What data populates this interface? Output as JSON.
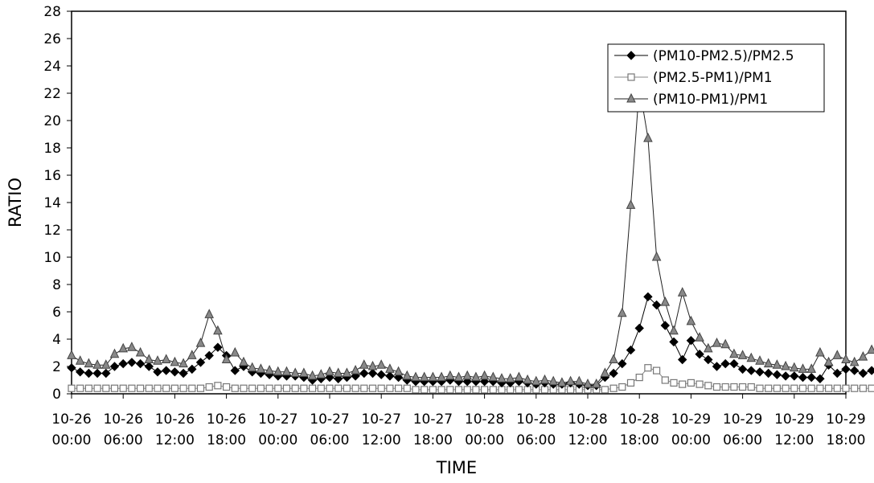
{
  "chart_data": {
    "type": "line",
    "xlabel": "TIME",
    "ylabel": "RATIO",
    "ylim": [
      0,
      28
    ],
    "y_ticks": [
      0,
      2,
      4,
      6,
      8,
      10,
      12,
      14,
      16,
      18,
      20,
      22,
      24,
      26,
      28
    ],
    "x_ticks": [
      {
        "date": "10-26",
        "time": "00:00"
      },
      {
        "date": "10-26",
        "time": "06:00"
      },
      {
        "date": "10-26",
        "time": "12:00"
      },
      {
        "date": "10-26",
        "time": "18:00"
      },
      {
        "date": "10-27",
        "time": "00:00"
      },
      {
        "date": "10-27",
        "time": "06:00"
      },
      {
        "date": "10-27",
        "time": "12:00"
      },
      {
        "date": "10-27",
        "time": "18:00"
      },
      {
        "date": "10-28",
        "time": "00:00"
      },
      {
        "date": "10-28",
        "time": "06:00"
      },
      {
        "date": "10-28",
        "time": "12:00"
      },
      {
        "date": "10-28",
        "time": "18:00"
      },
      {
        "date": "10-29",
        "time": "00:00"
      },
      {
        "date": "10-29",
        "time": "06:00"
      },
      {
        "date": "10-29",
        "time": "12:00"
      },
      {
        "date": "10-29",
        "time": "18:00"
      }
    ],
    "x_start": "10-26 00:00",
    "x_interval_hours": 1,
    "grid": false,
    "legend_position": "top-right",
    "series": [
      {
        "name": "(PM10-PM2.5)/PM2.5",
        "marker": "diamond",
        "values": [
          1.9,
          1.6,
          1.5,
          1.5,
          1.5,
          2.0,
          2.2,
          2.3,
          2.2,
          2.0,
          1.6,
          1.7,
          1.6,
          1.5,
          1.8,
          2.3,
          2.8,
          3.4,
          2.8,
          1.7,
          2.0,
          1.6,
          1.5,
          1.4,
          1.3,
          1.3,
          1.3,
          1.2,
          1.0,
          1.1,
          1.2,
          1.1,
          1.2,
          1.3,
          1.5,
          1.5,
          1.4,
          1.3,
          1.2,
          1.0,
          0.9,
          0.9,
          0.9,
          0.9,
          1.0,
          0.9,
          0.9,
          0.9,
          0.9,
          0.9,
          0.8,
          0.8,
          0.9,
          0.8,
          0.7,
          0.8,
          0.7,
          0.7,
          0.8,
          0.7,
          0.6,
          0.6,
          1.2,
          1.5,
          2.2,
          3.2,
          4.8,
          7.1,
          6.5,
          5.0,
          3.8,
          2.5,
          3.9,
          2.9,
          2.5,
          2.0,
          2.2,
          2.2,
          1.8,
          1.7,
          1.6,
          1.5,
          1.4,
          1.3,
          1.3,
          1.2,
          1.2,
          1.1,
          2.1,
          1.5,
          1.8,
          1.7,
          1.5,
          1.7,
          1.8,
          1.9,
          1.9,
          1.9,
          2.4
        ]
      },
      {
        "name": "(PM2.5-PM1)/PM1",
        "marker": "square-open",
        "values": [
          0.4,
          0.4,
          0.4,
          0.4,
          0.4,
          0.4,
          0.4,
          0.4,
          0.4,
          0.4,
          0.4,
          0.4,
          0.4,
          0.4,
          0.4,
          0.4,
          0.5,
          0.6,
          0.5,
          0.4,
          0.4,
          0.4,
          0.4,
          0.4,
          0.4,
          0.4,
          0.4,
          0.4,
          0.4,
          0.4,
          0.4,
          0.4,
          0.4,
          0.4,
          0.4,
          0.4,
          0.4,
          0.4,
          0.4,
          0.4,
          0.3,
          0.3,
          0.3,
          0.3,
          0.3,
          0.3,
          0.3,
          0.3,
          0.3,
          0.3,
          0.3,
          0.3,
          0.3,
          0.3,
          0.3,
          0.3,
          0.3,
          0.3,
          0.3,
          0.3,
          0.3,
          0.3,
          0.3,
          0.4,
          0.5,
          0.8,
          1.2,
          1.9,
          1.7,
          1.0,
          0.8,
          0.7,
          0.8,
          0.7,
          0.6,
          0.5,
          0.5,
          0.5,
          0.5,
          0.5,
          0.4,
          0.4,
          0.4,
          0.4,
          0.4,
          0.4,
          0.4,
          0.4,
          0.4,
          0.4,
          0.4,
          0.4,
          0.4,
          0.4,
          0.4,
          0.5,
          0.5,
          0.6,
          0.7
        ]
      },
      {
        "name": "(PM10-PM1)/PM1",
        "marker": "triangle",
        "values": [
          2.8,
          2.4,
          2.2,
          2.1,
          2.1,
          2.9,
          3.3,
          3.4,
          3.0,
          2.5,
          2.4,
          2.5,
          2.3,
          2.2,
          2.8,
          3.7,
          5.8,
          4.6,
          2.5,
          3.0,
          2.3,
          1.9,
          1.8,
          1.7,
          1.6,
          1.6,
          1.5,
          1.5,
          1.3,
          1.4,
          1.6,
          1.5,
          1.5,
          1.7,
          2.1,
          2.0,
          2.1,
          1.8,
          1.6,
          1.3,
          1.2,
          1.2,
          1.2,
          1.2,
          1.3,
          1.2,
          1.3,
          1.2,
          1.3,
          1.2,
          1.1,
          1.1,
          1.2,
          1.0,
          0.9,
          1.0,
          0.9,
          0.8,
          0.9,
          0.9,
          0.7,
          0.7,
          1.5,
          2.5,
          5.9,
          13.8,
          22.5,
          18.7,
          10.0,
          6.7,
          4.6,
          7.4,
          5.3,
          4.1,
          3.3,
          3.7,
          3.6,
          2.9,
          2.8,
          2.6,
          2.4,
          2.2,
          2.1,
          2.0,
          1.9,
          1.8,
          1.8,
          3.0,
          2.3,
          2.8,
          2.5,
          2.3,
          2.7,
          3.2,
          3.4,
          3.6,
          3.9,
          4.5
        ]
      }
    ]
  }
}
